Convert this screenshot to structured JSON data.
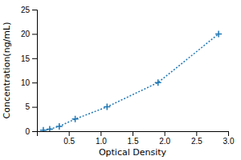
{
  "chart_data": {
    "type": "line",
    "x": [
      0.1,
      0.2,
      0.35,
      0.6,
      1.1,
      1.9,
      2.85
    ],
    "values": [
      0.2,
      0.4,
      1.0,
      2.5,
      5.0,
      10.0,
      20.0
    ],
    "xlabel": "Optical Density",
    "ylabel": "Concentration(ng/mL)",
    "xlim": [
      0,
      3.0
    ],
    "ylim": [
      0,
      25
    ],
    "xticks": [
      0.5,
      {
        "value": 1.0,
        "label": "1.0"
      },
      1.5,
      {
        "value": 2.0,
        "label": "2.0"
      },
      2.5,
      {
        "value": 3.0,
        "label": "3.0"
      }
    ],
    "yticks": [
      0,
      5,
      10,
      15,
      20,
      25
    ],
    "marker": "plus",
    "line_style": "dotted",
    "grid": false
  }
}
